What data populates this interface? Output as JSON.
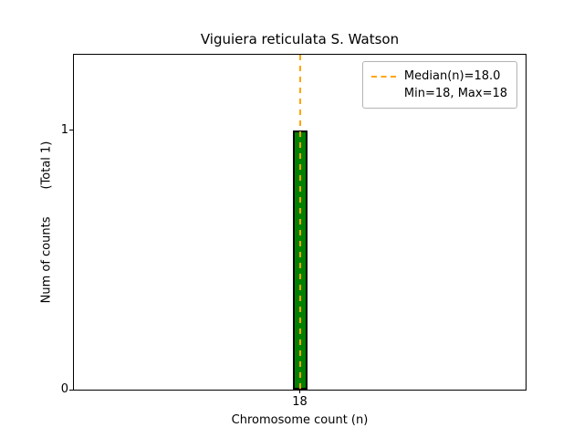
{
  "figure": {
    "title": "Viguiera reticulata S. Watson"
  },
  "axes": {
    "xlabel": "Chromosome count (n)",
    "ylabel_main": "Num of counts",
    "ylabel_total": "(Total 1)",
    "xtick_labels": [
      "18"
    ],
    "ytick_labels": [
      "1",
      "0"
    ]
  },
  "legend": {
    "median": "Median(n)=18.0",
    "minmax": "Min=18, Max=18"
  },
  "colors": {
    "bar_fill": "#008000",
    "bar_edge": "#000000",
    "median_line": "#ffa500",
    "legend_border": "#b3b3b3"
  },
  "chart_data": {
    "type": "bar",
    "title": "Viguiera reticulata S. Watson",
    "xlabel": "Chromosome count (n)",
    "ylabel": "Num of counts (Total 1)",
    "categories": [
      "18"
    ],
    "values": [
      1
    ],
    "total_counts": 1,
    "ylim": [
      0,
      1.29
    ],
    "yticks": [
      1,
      0
    ],
    "median": 18.0,
    "min": 18,
    "max": 18,
    "grid": false,
    "legend_position": "upper right",
    "bar_color_name": "green",
    "median_line_style": "dashed",
    "median_line_color_name": "orange"
  }
}
